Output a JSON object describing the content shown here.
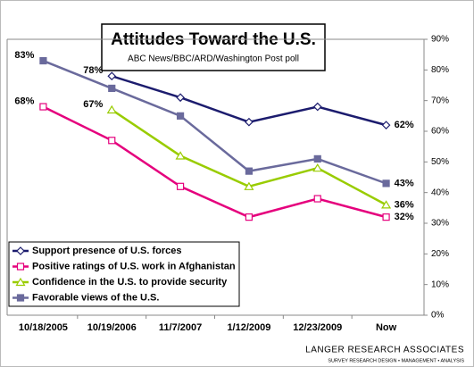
{
  "chart_data": {
    "type": "line",
    "title": "Attitudes Toward the U.S.",
    "subtitle": "ABC News/BBC/ARD/Washington Post poll",
    "footer_name": "LANGER RESEARCH ASSOCIATES",
    "footer_tagline": "SURVEY RESEARCH DESIGN • MANAGEMENT • ANALYSIS",
    "categories": [
      "10/18/2005",
      "10/19/2006",
      "11/7/2007",
      "1/12/2009",
      "12/23/2009",
      "Now"
    ],
    "ylim": [
      0,
      90
    ],
    "yticks": [
      {
        "value": 0,
        "label": "0%"
      },
      {
        "value": 10,
        "label": "10%"
      },
      {
        "value": 20,
        "label": "20%"
      },
      {
        "value": 30,
        "label": "30%"
      },
      {
        "value": 40,
        "label": "40%"
      },
      {
        "value": 50,
        "label": "50%"
      },
      {
        "value": 60,
        "label": "60%"
      },
      {
        "value": 70,
        "label": "70%"
      },
      {
        "value": 80,
        "label": "80%"
      },
      {
        "value": 90,
        "label": "90%"
      }
    ],
    "y_axis_side": "right",
    "grid": false,
    "legend_position": "lower left",
    "series": [
      {
        "name": "Support presence of U.S. forces",
        "color": "#1c1c6e",
        "marker": "diamond",
        "marker_fill": "#ffffff",
        "values": [
          null,
          78,
          71,
          63,
          68,
          62
        ],
        "value_labels": [
          null,
          "78%",
          null,
          null,
          null,
          "62%"
        ]
      },
      {
        "name": "Positive ratings of U.S. work in Afghanistan",
        "color": "#e5007d",
        "marker": "square",
        "marker_fill": "#ffffff",
        "values": [
          68,
          57,
          42,
          32,
          38,
          32
        ],
        "value_labels": [
          "68%",
          null,
          null,
          null,
          null,
          "32%"
        ]
      },
      {
        "name": "Confidence in the U.S. to provide security",
        "color": "#99cc00",
        "marker": "triangle",
        "marker_fill": "#ffffff",
        "values": [
          null,
          67,
          52,
          42,
          48,
          36
        ],
        "value_labels": [
          null,
          "67%",
          null,
          null,
          null,
          "36%"
        ]
      },
      {
        "name": "Favorable views of the U.S.",
        "color": "#6a6a9c",
        "marker": "square",
        "marker_fill": "#6a6a9c",
        "values": [
          83,
          74,
          65,
          47,
          51,
          43
        ],
        "value_labels": [
          "83%",
          null,
          null,
          null,
          null,
          "43%"
        ]
      }
    ]
  }
}
